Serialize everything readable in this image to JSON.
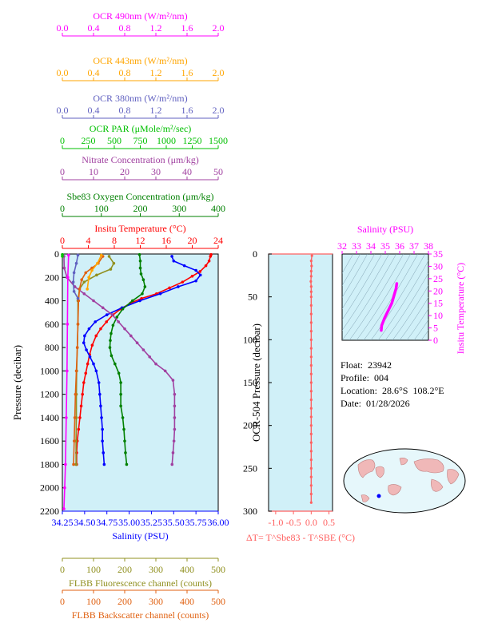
{
  "colors": {
    "ocr490": "#ff00ff",
    "ocr443": "#ffa500",
    "ocr380": "#6060c0",
    "par": "#00c000",
    "nitrate": "#a040a0",
    "oxygen": "#008000",
    "temp": "#ff0000",
    "salinity": "#0000ff",
    "fluor": "#909020",
    "backscatter": "#e06010",
    "dt": "#ff6060",
    "panel_bg": "#d0f0f8"
  },
  "top_axes": [
    {
      "key": "ocr490",
      "label": "OCR 490nm (W/m²/nm)",
      "ticks": [
        "0.0",
        "0.4",
        "0.8",
        "1.2",
        "1.6",
        "2.0"
      ],
      "min": 0,
      "max": 2
    },
    {
      "key": "ocr443",
      "label": "OCR 443nm (W/m²/nm)",
      "ticks": [
        "0.0",
        "0.4",
        "0.8",
        "1.2",
        "1.6",
        "2.0"
      ],
      "min": 0,
      "max": 2
    },
    {
      "key": "ocr380",
      "label": "OCR 380nm (W/m²/nm)",
      "ticks": [
        "0.0",
        "0.4",
        "0.8",
        "1.2",
        "1.6",
        "2.0"
      ],
      "min": 0,
      "max": 2
    },
    {
      "key": "par",
      "label": "OCR PAR (μMole/m²/sec)",
      "ticks": [
        "0",
        "250",
        "500",
        "750",
        "1000",
        "1250",
        "1500"
      ],
      "min": 0,
      "max": 1500
    },
    {
      "key": "nitrate",
      "label": "Nitrate Concentration (μm/kg)",
      "ticks": [
        "0",
        "10",
        "20",
        "30",
        "40",
        "50"
      ],
      "min": 0,
      "max": 50
    },
    {
      "key": "oxygen",
      "label": "Sbe83 Oxygen Concentration (μm/kg)",
      "ticks": [
        "0",
        "100",
        "200",
        "300",
        "400"
      ],
      "min": 0,
      "max": 400
    },
    {
      "key": "temp",
      "label": "Insitu Temperature (°C)",
      "ticks": [
        "0",
        "4",
        "8",
        "12",
        "16",
        "20",
        "24"
      ],
      "min": 0,
      "max": 24
    }
  ],
  "bottom_axes": [
    {
      "key": "salinity",
      "label": "Salinity (PSU)",
      "ticks": [
        "34.25",
        "34.50",
        "34.75",
        "35.00",
        "35.25",
        "35.50",
        "35.75",
        "36.00"
      ],
      "min": 34.25,
      "max": 36.0
    },
    {
      "key": "fluor",
      "label": "FLBB Fluorescence channel (counts)",
      "ticks": [
        "0",
        "100",
        "200",
        "300",
        "400",
        "500"
      ],
      "min": 0,
      "max": 500
    },
    {
      "key": "backscatter",
      "label": "FLBB Backscatter channel (counts)",
      "ticks": [
        "0",
        "100",
        "200",
        "300",
        "400",
        "500"
      ],
      "min": 0,
      "max": 500
    }
  ],
  "main_y": {
    "label": "Pressure (decibar)",
    "ticks": [
      "0",
      "200",
      "400",
      "600",
      "800",
      "1000",
      "1200",
      "1400",
      "1600",
      "1800",
      "2000",
      "2200"
    ],
    "min": 0,
    "max": 2200
  },
  "chart_data": [
    {
      "type": "line",
      "title": "",
      "ylabel": "Pressure (decibar)",
      "ylim": [
        2200,
        0
      ],
      "series": [
        {
          "name": "Insitu Temperature (°C)",
          "key": "temp",
          "points": [
            [
              22.9,
              5
            ],
            [
              22.8,
              20
            ],
            [
              22.6,
              60
            ],
            [
              22.1,
              100
            ],
            [
              21.2,
              150
            ],
            [
              20.0,
              190
            ],
            [
              18.5,
              240
            ],
            [
              16.5,
              290
            ],
            [
              14.5,
              340
            ],
            [
              12.2,
              380
            ],
            [
              10.5,
              420
            ],
            [
              9.0,
              470
            ],
            [
              7.8,
              520
            ],
            [
              6.8,
              580
            ],
            [
              5.9,
              640
            ],
            [
              5.2,
              700
            ],
            [
              4.6,
              780
            ],
            [
              4.2,
              860
            ],
            [
              3.9,
              940
            ],
            [
              3.6,
              1020
            ],
            [
              3.3,
              1100
            ],
            [
              3.1,
              1200
            ],
            [
              2.9,
              1300
            ],
            [
              2.7,
              1400
            ],
            [
              2.5,
              1500
            ],
            [
              2.3,
              1600
            ],
            [
              2.2,
              1700
            ],
            [
              2.2,
              1800
            ]
          ]
        },
        {
          "name": "Salinity (PSU)",
          "key": "salinity",
          "points": [
            [
              35.48,
              20
            ],
            [
              35.5,
              60
            ],
            [
              35.62,
              100
            ],
            [
              35.75,
              140
            ],
            [
              35.8,
              180
            ],
            [
              35.75,
              230
            ],
            [
              35.55,
              280
            ],
            [
              35.35,
              340
            ],
            [
              35.12,
              400
            ],
            [
              34.92,
              460
            ],
            [
              34.75,
              520
            ],
            [
              34.62,
              580
            ],
            [
              34.55,
              640
            ],
            [
              34.5,
              700
            ],
            [
              34.49,
              760
            ],
            [
              34.52,
              820
            ],
            [
              34.56,
              880
            ],
            [
              34.6,
              940
            ],
            [
              34.63,
              1000
            ],
            [
              34.66,
              1100
            ],
            [
              34.67,
              1200
            ],
            [
              34.68,
              1300
            ],
            [
              34.69,
              1400
            ],
            [
              34.7,
              1500
            ],
            [
              34.7,
              1600
            ],
            [
              34.71,
              1700
            ],
            [
              34.72,
              1800
            ]
          ]
        },
        {
          "name": "Sbe83 Oxygen Concentration (μm/kg)",
          "key": "oxygen",
          "points": [
            [
              198,
              5
            ],
            [
              200,
              60
            ],
            [
              200,
              120
            ],
            [
              202,
              170
            ],
            [
              208,
              220
            ],
            [
              212,
              280
            ],
            [
              205,
              340
            ],
            [
              180,
              400
            ],
            [
              155,
              470
            ],
            [
              140,
              540
            ],
            [
              130,
              610
            ],
            [
              125,
              680
            ],
            [
              123,
              740
            ],
            [
              122,
              800
            ],
            [
              126,
              870
            ],
            [
              135,
              940
            ],
            [
              145,
              1020
            ],
            [
              150,
              1100
            ],
            [
              150,
              1200
            ],
            [
              150,
              1300
            ],
            [
              155,
              1400
            ],
            [
              158,
              1500
            ],
            [
              160,
              1600
            ],
            [
              162,
              1700
            ],
            [
              165,
              1800
            ]
          ]
        },
        {
          "name": "Nitrate Concentration (μm/kg)",
          "key": "nitrate",
          "points": [
            [
              0.5,
              20
            ],
            [
              0.6,
              120
            ],
            [
              1.5,
              200
            ],
            [
              4,
              280
            ],
            [
              7,
              340
            ],
            [
              10,
              400
            ],
            [
              13,
              460
            ],
            [
              16,
              520
            ],
            [
              18,
              580
            ],
            [
              20,
              640
            ],
            [
              22,
              700
            ],
            [
              24,
              760
            ],
            [
              26,
              820
            ],
            [
              28,
              880
            ],
            [
              30,
              940
            ],
            [
              33,
              1000
            ],
            [
              35.5,
              1080
            ],
            [
              36,
              1200
            ],
            [
              36,
              1300
            ],
            [
              36,
              1400
            ],
            [
              36,
              1500
            ],
            [
              35.8,
              1600
            ],
            [
              35.5,
              1700
            ],
            [
              35.2,
              1800
            ]
          ]
        },
        {
          "name": "FLBB Fluorescence channel (counts)",
          "key": "fluor",
          "points": [
            [
              150,
              20
            ],
            [
              165,
              80
            ],
            [
              155,
              130
            ],
            [
              110,
              180
            ],
            [
              70,
              240
            ],
            [
              55,
              300
            ],
            [
              50,
              400
            ],
            [
              50,
              600
            ],
            [
              48,
              800
            ],
            [
              46,
              1000
            ],
            [
              45,
              1200
            ],
            [
              45,
              1400
            ],
            [
              44,
              1600
            ],
            [
              44,
              1800
            ]
          ]
        },
        {
          "name": "FLBB Backscatter channel (counts)",
          "key": "backscatter",
          "points": [
            [
              130,
              20
            ],
            [
              115,
              80
            ],
            [
              95,
              120
            ],
            [
              75,
              160
            ],
            [
              62,
              220
            ],
            [
              55,
              300
            ],
            [
              52,
              400
            ],
            [
              50,
              600
            ],
            [
              48,
              800
            ],
            [
              45,
              1000
            ],
            [
              42,
              1200
            ],
            [
              40,
              1400
            ],
            [
              38,
              1600
            ],
            [
              36,
              1800
            ]
          ]
        },
        {
          "name": "OCR 490nm (W/m²/nm)",
          "key": "ocr490",
          "points": [
            [
              0.08,
              10
            ],
            [
              0.07,
              200
            ],
            [
              0.065,
              600
            ],
            [
              0.06,
              1000
            ],
            [
              0.05,
              1400
            ],
            [
              0.04,
              1800
            ],
            [
              0.03,
              2000
            ],
            [
              0.02,
              2180
            ]
          ]
        },
        {
          "name": "OCR 443nm (W/m²/nm)",
          "key": "ocr443",
          "points": [
            [
              0.5,
              10
            ],
            [
              0.45,
              80
            ],
            [
              0.38,
              140
            ],
            [
              0.34,
              200
            ],
            [
              0.32,
              300
            ]
          ]
        },
        {
          "name": "OCR 380nm (W/m²/nm)",
          "key": "ocr380",
          "points": [
            [
              0.2,
              10
            ],
            [
              0.18,
              80
            ],
            [
              0.15,
              160
            ],
            [
              0.14,
              240
            ],
            [
              0.15,
              320
            ],
            [
              0.2,
              380
            ]
          ]
        },
        {
          "name": "OCR PAR (μMole/m²/sec)",
          "key": "par",
          "points": [
            [
              0,
              5
            ],
            [
              0,
              20
            ]
          ]
        }
      ]
    },
    {
      "type": "scatter",
      "title": "",
      "xlabel": "ΔT= T^Sbe83 - T^SBE (°C)",
      "ylabel": "OCR-504 Pressure (decibar)",
      "xlim": [
        -1.2,
        0.6
      ],
      "ylim": [
        300,
        0
      ],
      "x_ticks": [
        "-1.0",
        "-0.5",
        "0.0",
        "0.5"
      ],
      "y_ticks": [
        "0",
        "50",
        "100",
        "150",
        "200",
        "250",
        "300"
      ],
      "series": [
        {
          "name": "",
          "key": "dt",
          "points": [
            [
              0.02,
              2
            ],
            [
              0.0,
              8
            ],
            [
              0.01,
              14
            ],
            [
              0.0,
              20
            ],
            [
              0.0,
              26
            ],
            [
              -0.01,
              32
            ],
            [
              0.0,
              38
            ],
            [
              0.0,
              44
            ],
            [
              0.0,
              50
            ],
            [
              0.0,
              60
            ],
            [
              0.0,
              70
            ],
            [
              0.0,
              80
            ],
            [
              0.0,
              90
            ],
            [
              0.0,
              100
            ],
            [
              0.0,
              110
            ],
            [
              0.0,
              120
            ],
            [
              0.0,
              130
            ],
            [
              0.0,
              140
            ],
            [
              0.0,
              150
            ],
            [
              0.0,
              160
            ],
            [
              0.0,
              170
            ],
            [
              0.0,
              180
            ],
            [
              0.0,
              190
            ],
            [
              0.0,
              200
            ],
            [
              0.0,
              210
            ],
            [
              0.0,
              220
            ],
            [
              0.0,
              230
            ],
            [
              0.0,
              240
            ],
            [
              0.0,
              250
            ],
            [
              0.0,
              260
            ],
            [
              0.0,
              270
            ],
            [
              0.0,
              280
            ],
            [
              0.0,
              290
            ]
          ]
        }
      ]
    },
    {
      "type": "line",
      "title": "",
      "xlabel": "Salinity (PSU)",
      "ylabel": "Insitu Temperature (°C)",
      "xlim": [
        32,
        38
      ],
      "ylim": [
        0,
        35
      ],
      "x_ticks": [
        "32",
        "33",
        "34",
        "35",
        "36",
        "37",
        "38"
      ],
      "y_ticks": [
        "0",
        "5",
        "10",
        "15",
        "20",
        "25",
        "30",
        "35"
      ],
      "series": [
        {
          "name": "",
          "key": "ocr490",
          "points": [
            [
              34.72,
              4
            ],
            [
              34.75,
              6
            ],
            [
              34.95,
              9
            ],
            [
              35.2,
              12
            ],
            [
              35.45,
              15
            ],
            [
              35.6,
              18
            ],
            [
              35.75,
              21
            ],
            [
              35.8,
              23
            ]
          ]
        }
      ]
    }
  ],
  "info": {
    "float": "Float:  23942",
    "profile": "Profile:  004",
    "location": "Location:  28.6°S  108.2°E",
    "date": "Date:  01/28/2026"
  }
}
